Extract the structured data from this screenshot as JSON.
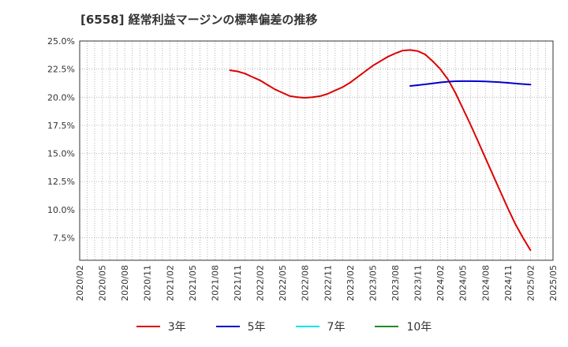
{
  "chart_data": {
    "type": "line",
    "title": "[6558]  経常利益マージンの標準偏差の推移",
    "xlabel": "",
    "ylabel": "",
    "ylim": [
      5.5,
      25.0
    ],
    "y_ticks": [
      7.5,
      10.0,
      12.5,
      15.0,
      17.5,
      20.0,
      22.5,
      25.0
    ],
    "y_tick_labels": [
      "7.5%",
      "10.0%",
      "12.5%",
      "15.0%",
      "17.5%",
      "20.0%",
      "22.5%",
      "25.0%"
    ],
    "x_tick_labels": [
      "2020/02",
      "2020/05",
      "2020/08",
      "2020/11",
      "2021/02",
      "2021/05",
      "2021/08",
      "2021/11",
      "2022/02",
      "2022/05",
      "2022/08",
      "2022/11",
      "2023/02",
      "2023/05",
      "2023/08",
      "2023/11",
      "2024/02",
      "2024/05",
      "2024/08",
      "2024/11",
      "2025/02",
      "2025/05"
    ],
    "grid": true,
    "legend_position": "bottom",
    "series": [
      {
        "name": "3年",
        "color": "#dd0000",
        "x": [
          "2021/10",
          "2021/11",
          "2021/12",
          "2022/01",
          "2022/02",
          "2022/03",
          "2022/04",
          "2022/05",
          "2022/06",
          "2022/07",
          "2022/08",
          "2022/09",
          "2022/10",
          "2022/11",
          "2022/12",
          "2023/01",
          "2023/02",
          "2023/03",
          "2023/04",
          "2023/05",
          "2023/06",
          "2023/07",
          "2023/08",
          "2023/09",
          "2023/10",
          "2023/11",
          "2023/12",
          "2024/01",
          "2024/02",
          "2024/03",
          "2024/04",
          "2024/05",
          "2024/06",
          "2024/07",
          "2024/08",
          "2024/09",
          "2024/10",
          "2024/11",
          "2024/12",
          "2025/01",
          "2025/02"
        ],
        "values": [
          22.4,
          22.3,
          22.1,
          21.8,
          21.5,
          21.1,
          20.7,
          20.4,
          20.1,
          20.0,
          19.95,
          20.0,
          20.1,
          20.3,
          20.6,
          20.9,
          21.3,
          21.8,
          22.3,
          22.8,
          23.2,
          23.6,
          23.9,
          24.15,
          24.2,
          24.1,
          23.8,
          23.2,
          22.5,
          21.6,
          20.4,
          19.0,
          17.6,
          16.1,
          14.6,
          13.1,
          11.6,
          10.1,
          8.7,
          7.5,
          6.4
        ]
      },
      {
        "name": "5年",
        "color": "#0000cc",
        "x": [
          "2023/10",
          "2023/11",
          "2023/12",
          "2024/01",
          "2024/02",
          "2024/03",
          "2024/04",
          "2024/05",
          "2024/06",
          "2024/07",
          "2024/08",
          "2024/09",
          "2024/10",
          "2024/11",
          "2024/12",
          "2025/01",
          "2025/02"
        ],
        "values": [
          21.0,
          21.07,
          21.15,
          21.23,
          21.32,
          21.38,
          21.42,
          21.43,
          21.43,
          21.42,
          21.4,
          21.37,
          21.33,
          21.28,
          21.22,
          21.17,
          21.13
        ]
      },
      {
        "name": "7年",
        "color": "#00e5e5",
        "x": [],
        "values": []
      },
      {
        "name": "10年",
        "color": "#228b22",
        "x": [],
        "values": []
      }
    ]
  }
}
